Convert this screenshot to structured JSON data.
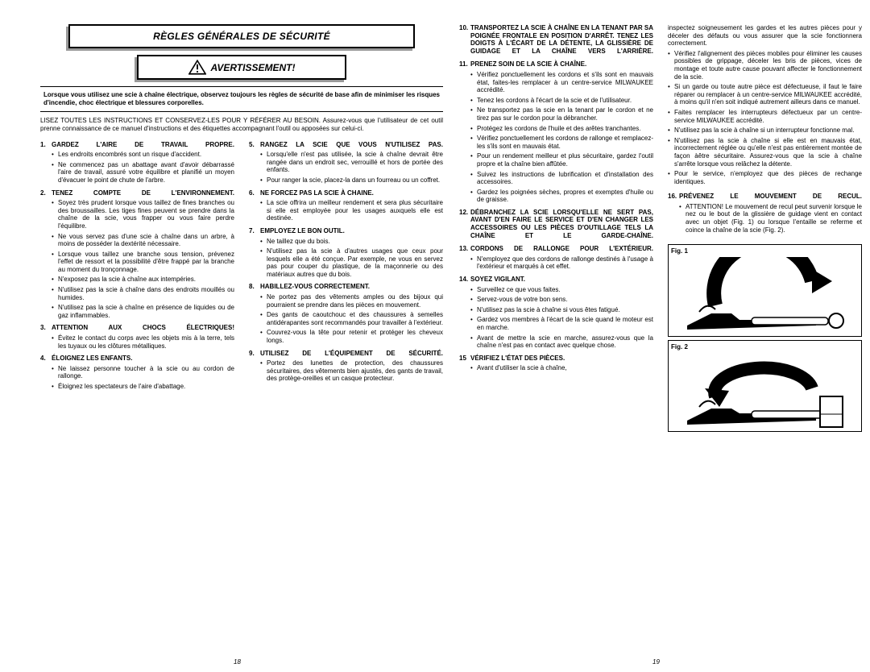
{
  "title": "RÈGLES GÉNÉRALES DE SÉCURITÉ",
  "warning": "AVERTISSEMENT!",
  "intro_bold": "Lorsque vous utilisez une scie à chaîne électrique, observez toujours les règles de sécurité de base afin de minimiser les risques d'incendie, choc électrique et blessures corporelles.",
  "intro2": "LISEZ TOUTES LES INSTRUCTIONS ET CONSERVEZ-LES POUR Y RÉFÉRER AU BESOIN. Assurez-vous que l'utilisateur de cet outil prenne connaissance de ce manuel d'instructions et des étiquettes accompagnant l'outil ou apposées sur celui-ci.",
  "rules": {
    "r1": {
      "num": "1.",
      "title": "GARDEZ L'AIRE DE TRAVAIL PROPRE.",
      "items": [
        "Les endroits encombrés sont un risque d'accident.",
        "Ne commencez pas un abattage avant d'avoir débarrassé l'aire de travail, assuré votre équilibre et planifié un moyen d'évacuer le point de chute de l'arbre."
      ]
    },
    "r2": {
      "num": "2.",
      "title": "TENEZ COMPTE DE L'ENVIRONNEMENT.",
      "items": [
        "Soyez très prudent lorsque vous taillez de fines branches ou des broussailles. Les tiges fines peuvent se prendre dans la chaîne de la scie, vous frapper ou vous faire perdre l'équilibre.",
        "Ne vous servez pas d'une scie à chaîne dans un arbre, à moins de posséder la dextérité nécessaire.",
        "Lorsque vous taillez une branche sous tension, prévenez l'effet de ressort et la possibilité d'être frappé par la branche au moment du tronçonnage.",
        "N'exposez pas la scie à chaîne aux intempéries.",
        "N'utilisez pas la scie à chaîne dans des endroits mouillés ou humides.",
        "N'utilisez pas la scie à chaîne en présence de liquides ou de gaz inflammables."
      ]
    },
    "r3": {
      "num": "3.",
      "title": "ATTENTION AUX CHOCS ÉLECTRIQUES!",
      "items": [
        "Évitez le contact du corps avec les objets mis à la terre, tels les tuyaux ou les clôtures métalliques."
      ]
    },
    "r4": {
      "num": "4.",
      "title": "ÉLOIGNEZ LES ENFANTS.",
      "items": [
        "Ne laissez personne toucher à la scie ou au cordon de rallonge.",
        "Éloignez les spectateurs de l'aire d'abattage."
      ]
    },
    "r5": {
      "num": "5.",
      "title": "RANGEZ LA SCIE QUE VOUS N'UTILISEZ PAS.",
      "items": [
        "Lorsqu'elle n'est pas utilisée, la scie à chaîne devrait être rangée dans un endroit sec, verrouillé et hors de portée des enfants.",
        "Pour ranger la scie, placez-la dans un fourreau ou un coffret."
      ]
    },
    "r6": {
      "num": "6.",
      "title": "NE FORCEZ PAS LA SCIE À CHAINE.",
      "items": [
        "La scie offrira un meilleur rendement et sera plus sécuritaire si elle est employée pour les usages auxquels elle est destinée."
      ]
    },
    "r7": {
      "num": "7.",
      "title": "EMPLOYEZ LE BON OUTIL.",
      "items": [
        "Ne taillez que du bois.",
        "N'utilisez pas la scie à d'autres usages que ceux pour lesquels elle a été conçue. Par exemple, ne vous en servez pas pour couper du plastique, de la maçonnerie ou des matériaux autres que du bois."
      ]
    },
    "r8": {
      "num": "8.",
      "title": "HABILLEZ-VOUS CORRECTEMENT.",
      "items": [
        "Ne portez pas des vêtements amples ou des bijoux qui pourraient se prendre dans les pièces en mouvement.",
        "Des gants de caoutchouc et des chaussures à semelles antidérapantes sont recommandés pour travailler à l'extérieur.",
        "Couvrez-vous la tête pour retenir et protéger les cheveux longs."
      ]
    },
    "r9": {
      "num": "9.",
      "title": "UTILISEZ DE L'ÉQUIPEMENT DE SÉCURITÉ.",
      "items": [
        "Portez des lunettes de protection, des chaussures sécuritaires, des vêtements bien ajustés, des gants de travail, des protège-oreilles et un casque protecteur."
      ]
    },
    "r10": {
      "num": "10.",
      "title": "TRANSPORTEZ LA SCIE À CHAÎNE EN LA TENANT PAR SA POIGNÉE FRONTALE EN POSITION D'ARRÊT. TENEZ LES DOIGTS À L'ÉCART DE LA DÉTENTE, LA GLISSIÈRE DE GUIDAGE ET LA CHAÎNE VERS L'ARRIÈRE."
    },
    "r11": {
      "num": "11.",
      "title": "PRENEZ SOIN DE LA SCIE À CHAÎNE.",
      "items": [
        "Vérifiez ponctuellement les cordons et s'ils sont en mauvais état, faites-les remplacer à un centre-service MILWAUKEE accrédité.",
        "Tenez les cordons à l'écart de la scie et de l'utilisateur.",
        "Ne transportez pas la scie en la tenant par le cordon et ne tirez pas sur le cordon pour la débrancher.",
        "Protégez les cordons de l'huile et des arêtes tranchantes.",
        "Vérifiez ponctuellement les cordons de rallonge et remplacez-les s'ils sont en mauvais état.",
        "Pour un rendement meilleur et plus sécuritaire, gardez l'outil propre et la chaîne bien affûtée.",
        "Suivez les instructions de lubrification et d'installation des accessoires.",
        "Gardez les poignées sèches, propres et exemptes d'huile ou de graisse."
      ]
    },
    "r12": {
      "num": "12.",
      "title": "DÉBRANCHEZ LA SCIE LORSQU'ELLE NE SERT PAS, AVANT D'EN FAIRE LE SERVICE ET D'EN CHANGER LES ACCESSOIRES OU LES PIÈCES D'OUTILLAGE TELS LA CHAÎNE ET LE GARDE-CHAÎNE."
    },
    "r13": {
      "num": "13.",
      "title": "CORDONS DE RALLONGE POUR L'EXTÉRIEUR.",
      "items": [
        "N'employez que des cordons de rallonge destinés à l'usage à l'extérieur et marqués à cet effet."
      ]
    },
    "r14": {
      "num": "14.",
      "title": "SOYEZ VIGILANT.",
      "items": [
        "Surveillez ce que vous faites.",
        "Servez-vous de votre bon sens.",
        "N'utilisez pas la scie à chaîne si vous êtes fatigué.",
        "Gardez vos membres à l'écart de la scie quand le moteur est en marche.",
        "Avant de mettre la scie en marche, assurez-vous que la chaîne n'est pas en contact avec quelque chose."
      ]
    },
    "r15": {
      "num": "15",
      "title": "VÉRIFIEZ L'ÉTAT DES PIÈCES.",
      "items": [
        "Avant d'utiliser la scie à chaîne,"
      ]
    },
    "r15b_items": [
      "inspectez soigneusement les gardes et les autres pièces pour y déceler des défauts ou vous assurer que la scie fonctionnera correctement.",
      "Vérifiez l'alignement des pièces mobiles pour éliminer les causes possibles de grippage, déceler les bris de pièces, vices de montage et toute autre cause pouvant affecter le fonctionnement de la scie.",
      "Si un garde ou toute autre pièce est défectueuse, il faut le faire réparer ou remplacer à un centre-service MILWAUKEE accrédité, à moins qu'il n'en soit indiqué autrement ailleurs dans ce manuel.",
      "Faites remplacer les interrupteurs défectueux par un centre-service MILWAUKEE accrédité.",
      "N'utilisez pas la scie à chaîne si un interrupteur fonctionne mal.",
      "N'utilisez pas la scie à chaîne si elle est en mauvais état, incorrectement réglée ou qu'elle n'est pas entièrement montée de façon àêtre sécuritaire. Assurez-vous que la scie à chaîne s'arrête lorsque vous relâchez la détente.",
      "Pour le service, n'employez que des pièces de rechange identiques."
    ],
    "r16": {
      "num": "16.",
      "title": "PRÉVENEZ LE MOUVEMENT DE RECUL.",
      "items": [
        "ATTENTION! Le mouvement de recul peut survenir lorsque le nez ou le bout de la glissière de guidage vient en contact avec un objet (Fig. 1) ou lorsque l'entaille se referme et coince la chaîne de la scie (Fig. 2)."
      ]
    }
  },
  "fig1_label": "Fig. 1",
  "fig2_label": "Fig. 2",
  "page_left": "18",
  "page_right": "19",
  "colors": {
    "text": "#000000",
    "bg": "#ffffff",
    "shadow": "#999999"
  }
}
